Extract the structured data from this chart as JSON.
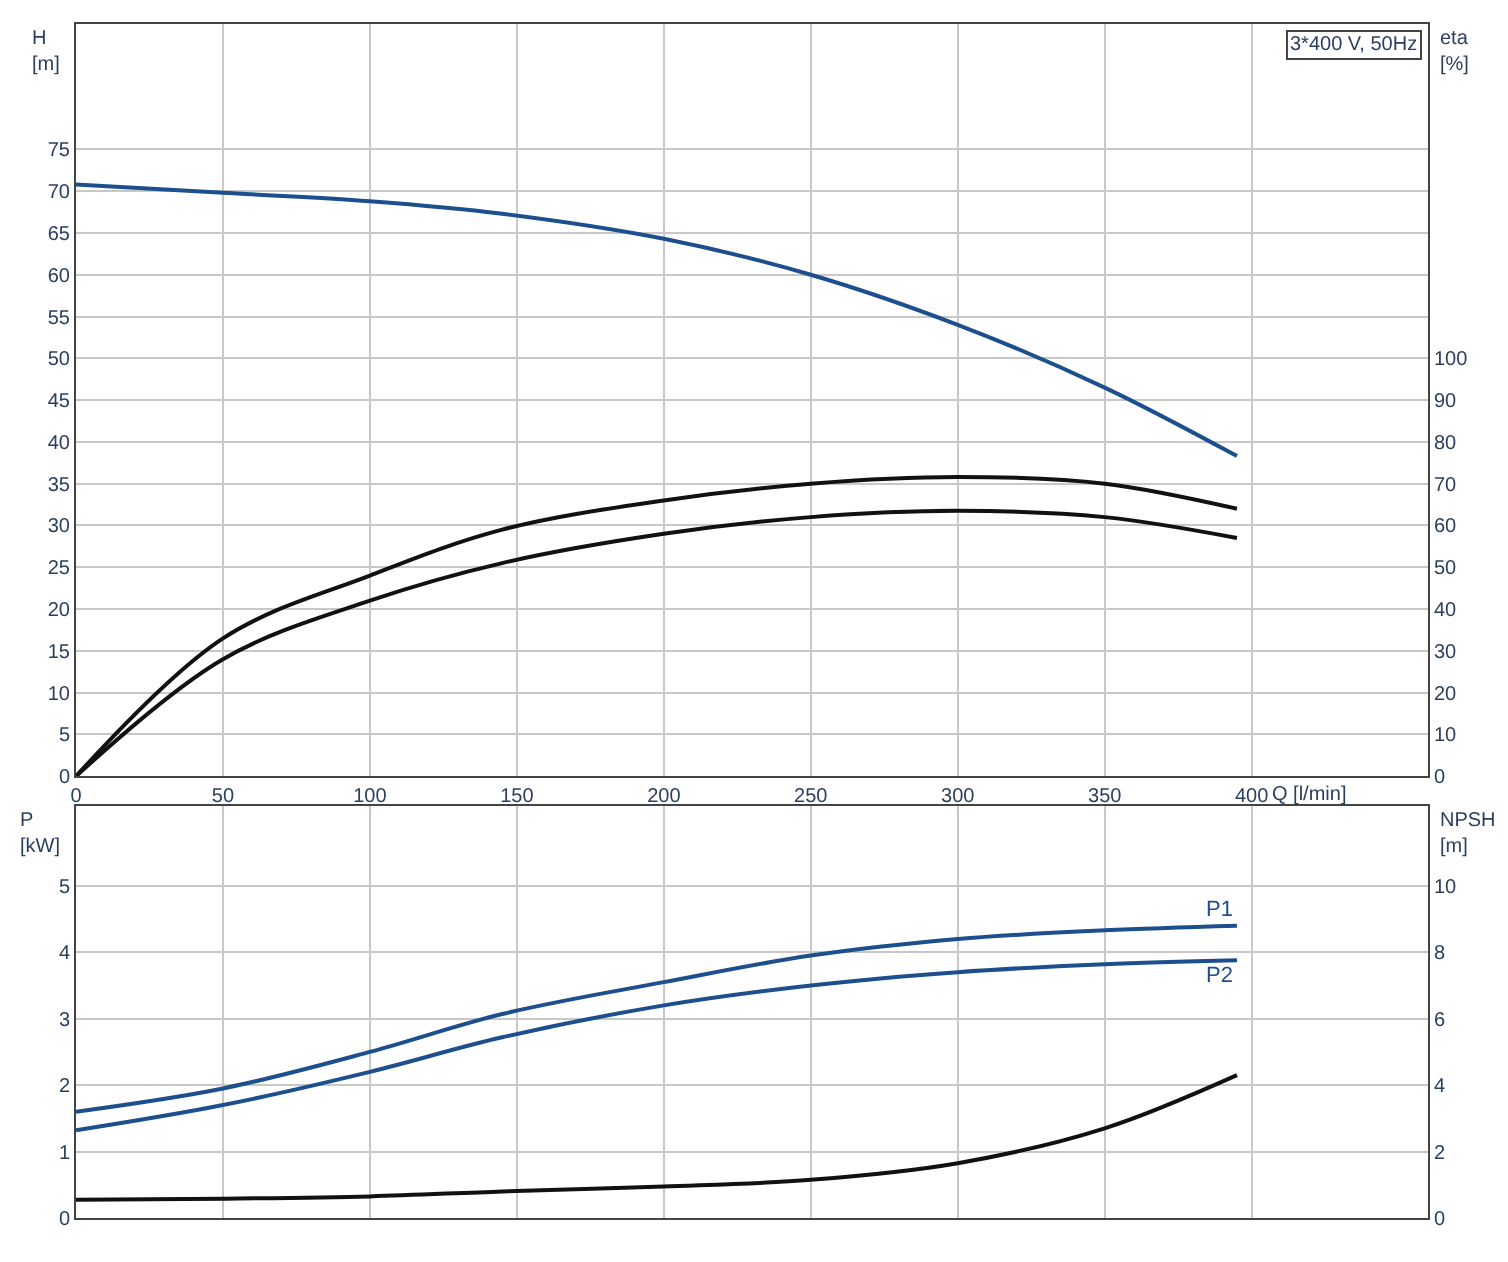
{
  "chart_data": [
    {
      "type": "line",
      "xlabel": "Q [l/min]",
      "ylabel": "H\n[m]",
      "y2label": "eta\n[%]",
      "annotations": [
        "3*400 V, 50Hz"
      ],
      "x": [
        0,
        50,
        100,
        145,
        200,
        250,
        300,
        350,
        395
      ],
      "series": [
        {
          "color": "#1d4f8f",
          "values": [
            70.8,
            69.8,
            68.8,
            67.3,
            64.3,
            60,
            54,
            46.5,
            38.3
          ]
        },
        {
          "color": "#111111",
          "axis": "y2",
          "values": [
            0,
            33,
            48,
            59,
            66,
            70,
            71.6,
            70,
            64
          ]
        },
        {
          "color": "#111111",
          "axis": "y2",
          "values": [
            0,
            28,
            42,
            51,
            58,
            62,
            63.5,
            62,
            57
          ]
        }
      ],
      "xlim": [
        0,
        460
      ],
      "xticks": [
        0,
        50,
        100,
        150,
        200,
        250,
        300,
        350,
        400
      ],
      "ylim": [
        0,
        90
      ],
      "yticks": [
        0,
        5,
        10,
        15,
        20,
        25,
        30,
        35,
        40,
        45,
        50,
        55,
        60,
        65,
        70,
        75
      ],
      "y2lim": [
        0,
        180
      ],
      "y2ticks": [
        0,
        10,
        20,
        30,
        40,
        50,
        60,
        70,
        80,
        90,
        100
      ],
      "grid": true
    },
    {
      "type": "line",
      "ylabel": "P\n[kW]",
      "y2label": "NPSH\n[m]",
      "x": [
        0,
        50,
        100,
        145,
        200,
        250,
        300,
        350,
        395
      ],
      "series": [
        {
          "name": "P1",
          "color": "#1d4f8f",
          "values": [
            1.6,
            1.95,
            2.5,
            3.07,
            3.55,
            3.95,
            4.2,
            4.33,
            4.4
          ]
        },
        {
          "name": "P2",
          "color": "#1d4f8f",
          "values": [
            1.32,
            1.7,
            2.2,
            2.72,
            3.2,
            3.5,
            3.7,
            3.82,
            3.88
          ]
        },
        {
          "color": "#111111",
          "axis": "y2",
          "values": [
            0.55,
            0.58,
            0.65,
            0.8,
            0.95,
            1.15,
            1.65,
            2.7,
            4.3
          ]
        }
      ],
      "xlim": [
        0,
        460
      ],
      "xticks": [
        0,
        50,
        100,
        150,
        200,
        250,
        300,
        350,
        400
      ],
      "ylim": [
        0,
        6.2
      ],
      "yticks": [
        0,
        1,
        2,
        3,
        4,
        5
      ],
      "y2lim": [
        0,
        12.4
      ],
      "y2ticks": [
        0,
        2,
        4,
        6,
        8,
        10
      ],
      "grid": true,
      "tick_labels": "y"
    }
  ]
}
